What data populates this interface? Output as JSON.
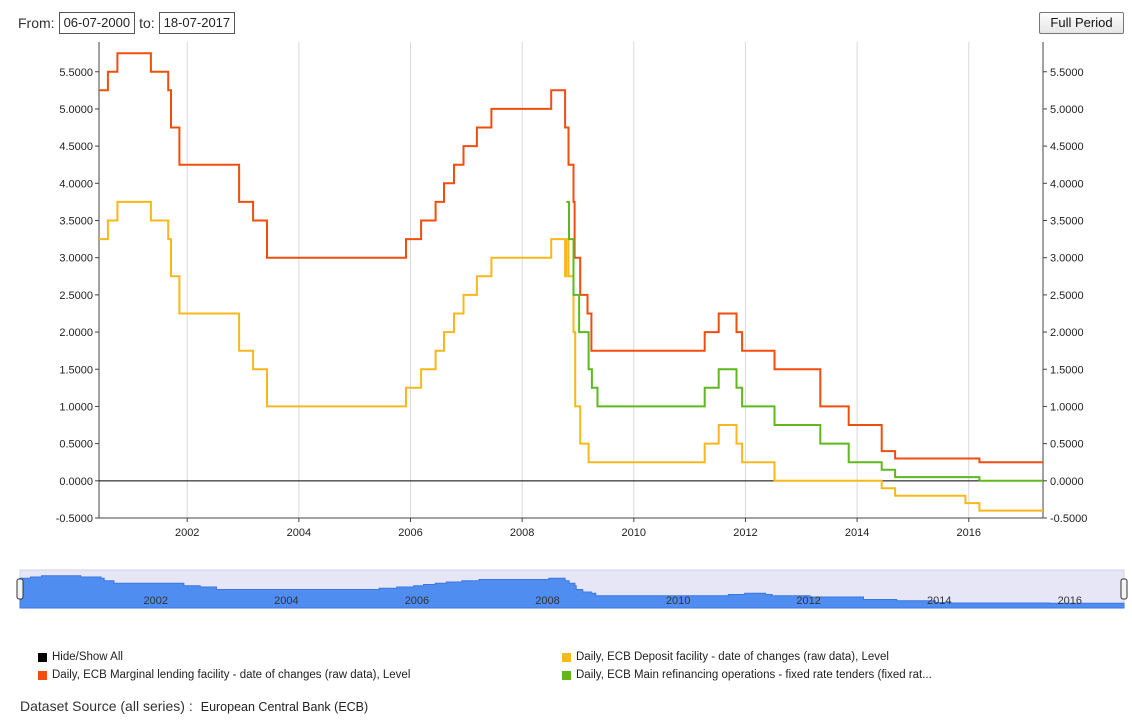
{
  "range": {
    "from_label": "From:",
    "from_value": "06-07-2000",
    "to_label": "to:",
    "to_value": "18-07-2017",
    "full_period_label": "Full Period"
  },
  "navigator": {
    "ticks": [
      "2002",
      "2004",
      "2006",
      "2008",
      "2010",
      "2012",
      "2014",
      "2016"
    ],
    "fill_color": "#4f8ef0"
  },
  "legend": {
    "hide_show_all": "Hide/Show All",
    "items": [
      {
        "label": "Daily, ECB Marginal lending facility - date of changes (raw data), Level",
        "color": "#f04e0c"
      },
      {
        "label": "Daily, ECB Deposit facility - date of changes (raw data), Level",
        "color": "#f8b81c"
      },
      {
        "label": "Daily, ECB Main refinancing operations - fixed rate tenders (fixed rat...",
        "color": "#5fb81e"
      }
    ]
  },
  "source": {
    "label": "Dataset Source (all series) :",
    "value": "European Central Bank (ECB)"
  },
  "chart_data": {
    "type": "line",
    "step": true,
    "x_axis": {
      "min": 2000.42,
      "max": 2017.33,
      "ticks": [
        2002,
        2004,
        2006,
        2008,
        2010,
        2012,
        2014,
        2016
      ]
    },
    "y_axis": {
      "min": -0.5,
      "max": 5.9,
      "ticks": [
        "-0.5000",
        "0.0000",
        "0.5000",
        "1.0000",
        "1.5000",
        "2.0000",
        "2.5000",
        "3.0000",
        "3.5000",
        "4.0000",
        "4.5000",
        "5.0000",
        "5.5000"
      ],
      "both_sides": true
    },
    "grid": "vertical",
    "series": [
      {
        "name": "Daily, ECB Marginal lending facility - date of changes (raw data), Level",
        "color": "#f04e0c",
        "points": [
          [
            2000.42,
            5.25
          ],
          [
            2000.58,
            5.5
          ],
          [
            2000.75,
            5.75
          ],
          [
            2001.35,
            5.5
          ],
          [
            2001.66,
            5.25
          ],
          [
            2001.71,
            4.75
          ],
          [
            2001.86,
            4.25
          ],
          [
            2002.93,
            3.75
          ],
          [
            2003.18,
            3.5
          ],
          [
            2003.43,
            3.0
          ],
          [
            2005.92,
            3.25
          ],
          [
            2006.19,
            3.5
          ],
          [
            2006.45,
            3.75
          ],
          [
            2006.6,
            4.0
          ],
          [
            2006.78,
            4.25
          ],
          [
            2006.95,
            4.5
          ],
          [
            2007.19,
            4.75
          ],
          [
            2007.45,
            5.0
          ],
          [
            2008.52,
            5.25
          ],
          [
            2008.77,
            4.75
          ],
          [
            2008.83,
            4.25
          ],
          [
            2008.92,
            3.75
          ],
          [
            2008.94,
            3.0
          ],
          [
            2009.04,
            2.5
          ],
          [
            2009.17,
            2.25
          ],
          [
            2009.24,
            1.75
          ],
          [
            2011.27,
            2.0
          ],
          [
            2011.52,
            2.25
          ],
          [
            2011.84,
            2.0
          ],
          [
            2011.94,
            1.75
          ],
          [
            2012.52,
            1.5
          ],
          [
            2013.34,
            1.0
          ],
          [
            2013.85,
            0.75
          ],
          [
            2014.44,
            0.4
          ],
          [
            2014.68,
            0.3
          ],
          [
            2015.94,
            0.3
          ],
          [
            2016.19,
            0.25
          ],
          [
            2017.33,
            0.25
          ]
        ]
      },
      {
        "name": "Daily, ECB Deposit facility - date of changes (raw data), Level",
        "color": "#f8b81c",
        "points": [
          [
            2000.42,
            3.25
          ],
          [
            2000.58,
            3.5
          ],
          [
            2000.75,
            3.75
          ],
          [
            2001.35,
            3.5
          ],
          [
            2001.66,
            3.25
          ],
          [
            2001.71,
            2.75
          ],
          [
            2001.86,
            2.25
          ],
          [
            2002.93,
            1.75
          ],
          [
            2003.18,
            1.5
          ],
          [
            2003.43,
            1.0
          ],
          [
            2005.92,
            1.25
          ],
          [
            2006.19,
            1.5
          ],
          [
            2006.45,
            1.75
          ],
          [
            2006.6,
            2.0
          ],
          [
            2006.78,
            2.25
          ],
          [
            2006.95,
            2.5
          ],
          [
            2007.19,
            2.75
          ],
          [
            2007.45,
            3.0
          ],
          [
            2008.52,
            3.25
          ],
          [
            2008.77,
            2.75
          ],
          [
            2008.79,
            3.25
          ],
          [
            2008.83,
            2.75
          ],
          [
            2008.92,
            2.0
          ],
          [
            2008.95,
            1.0
          ],
          [
            2009.04,
            0.5
          ],
          [
            2009.19,
            0.25
          ],
          [
            2011.27,
            0.5
          ],
          [
            2011.52,
            0.75
          ],
          [
            2011.84,
            0.5
          ],
          [
            2011.94,
            0.25
          ],
          [
            2012.52,
            0.0
          ],
          [
            2014.44,
            -0.1
          ],
          [
            2014.68,
            -0.2
          ],
          [
            2015.94,
            -0.3
          ],
          [
            2016.19,
            -0.4
          ],
          [
            2017.33,
            -0.4
          ]
        ]
      },
      {
        "name": "Daily, ECB Main refinancing operations - fixed rate tenders (fixed rat...",
        "color": "#5fb81e",
        "points": [
          [
            2008.79,
            3.75
          ],
          [
            2008.84,
            3.25
          ],
          [
            2008.92,
            2.5
          ],
          [
            2009.02,
            2.0
          ],
          [
            2009.19,
            1.5
          ],
          [
            2009.25,
            1.25
          ],
          [
            2009.35,
            1.0
          ],
          [
            2011.27,
            1.25
          ],
          [
            2011.52,
            1.5
          ],
          [
            2011.84,
            1.25
          ],
          [
            2011.94,
            1.0
          ],
          [
            2012.52,
            0.75
          ],
          [
            2013.34,
            0.5
          ],
          [
            2013.85,
            0.25
          ],
          [
            2014.44,
            0.15
          ],
          [
            2014.68,
            0.05
          ],
          [
            2015.94,
            0.05
          ],
          [
            2016.19,
            0.0
          ],
          [
            2017.33,
            0.0
          ]
        ]
      }
    ]
  }
}
